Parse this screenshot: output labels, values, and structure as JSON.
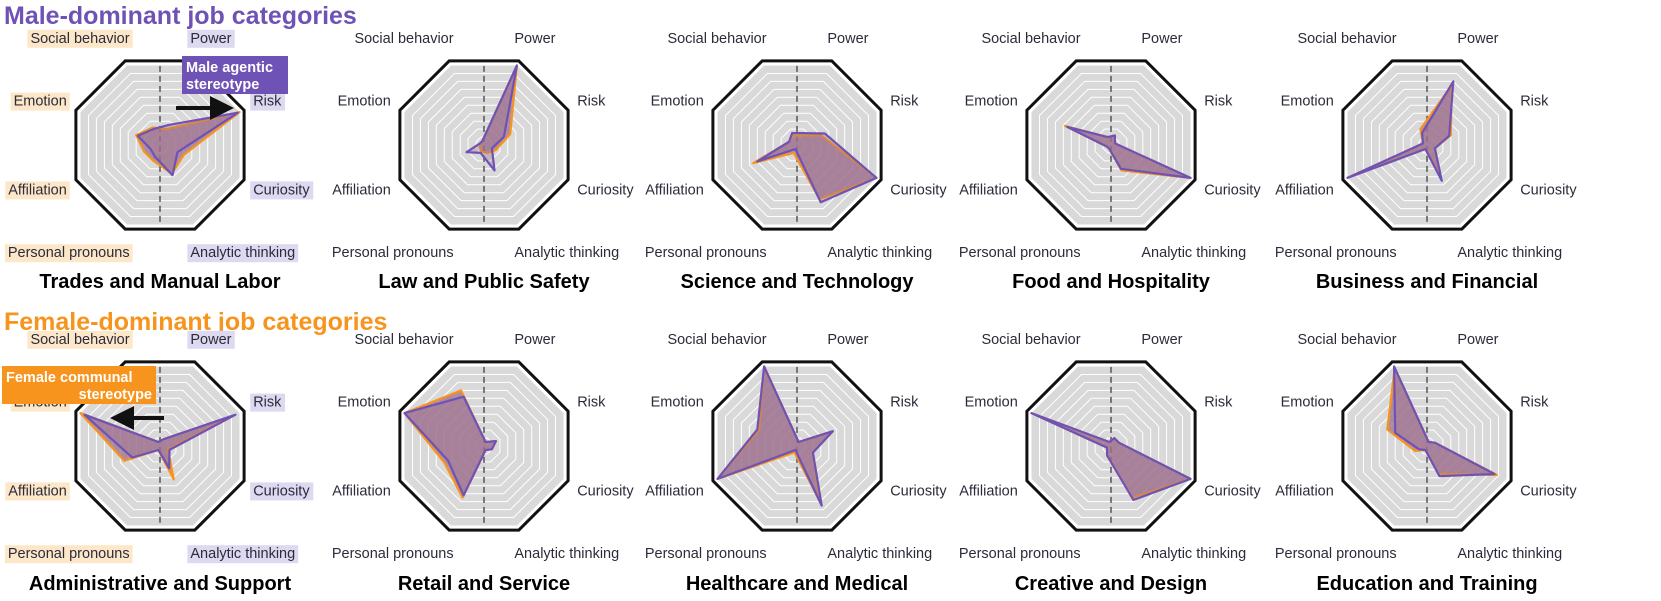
{
  "colors": {
    "male": "#6f52b5",
    "female": "#f7941d",
    "fill": "#9e6f8c",
    "grid_bg": "#d9d9d9",
    "male_label_bg": "#dcd9f0",
    "female_label_bg": "#fde7c9"
  },
  "sections": {
    "male_title": "Male-dominant job categories",
    "female_title": "Female-dominant job categories"
  },
  "annotations": {
    "male_line1": "Male agentic",
    "male_line2": "stereotype",
    "female_line1": "Female communal",
    "female_line2": "stereotype"
  },
  "chart_data": {
    "type": "radar",
    "axes": [
      "Power",
      "Risk",
      "Curiosity",
      "Analytic thinking",
      "Personal pronouns",
      "Affiliation",
      "Emotion",
      "Social behavior"
    ],
    "range": [
      0,
      1
    ],
    "legend": [
      {
        "name": "Male",
        "color": "#6f52b5"
      },
      {
        "name": "Female",
        "color": "#f7941d"
      }
    ],
    "panels": [
      {
        "title": "Trades and Manual Labor",
        "group": "male",
        "highlight": true,
        "series": [
          {
            "name": "Male",
            "values": [
              0.25,
              0.98,
              0.22,
              0.38,
              0.15,
              0.12,
              0.28,
              0.2
            ]
          },
          {
            "name": "Female",
            "values": [
              0.2,
              1.0,
              0.3,
              0.36,
              0.2,
              0.2,
              0.3,
              0.22
            ]
          }
        ]
      },
      {
        "title": "Law and Public Safety",
        "group": "male",
        "highlight": false,
        "series": [
          {
            "name": "Male",
            "values": [
              1.0,
              0.25,
              0.1,
              0.32,
              0.1,
              0.22,
              0.05,
              0.05
            ]
          },
          {
            "name": "Female",
            "values": [
              1.0,
              0.33,
              0.15,
              0.1,
              0.08,
              0.05,
              0.05,
              0.05
            ]
          }
        ]
      },
      {
        "title": "Science and Technology",
        "group": "male",
        "highlight": false,
        "series": [
          {
            "name": "Male",
            "values": [
              0.15,
              0.35,
              1.0,
              0.72,
              0.05,
              0.5,
              0.1,
              0.15
            ]
          },
          {
            "name": "Female",
            "values": [
              0.12,
              0.3,
              1.0,
              0.68,
              0.1,
              0.55,
              0.1,
              0.12
            ]
          }
        ]
      },
      {
        "title": "Food and Hospitality",
        "group": "male",
        "highlight": false,
        "series": [
          {
            "name": "Male",
            "values": [
              0.12,
              0.05,
              1.0,
              0.3,
              0.05,
              0.05,
              0.55,
              0.1
            ]
          },
          {
            "name": "Female",
            "values": [
              0.12,
              0.05,
              1.0,
              0.32,
              0.05,
              0.05,
              0.58,
              0.1
            ]
          }
        ]
      },
      {
        "title": "Business and Financial",
        "group": "male",
        "highlight": false,
        "series": [
          {
            "name": "Male",
            "values": [
              0.8,
              0.28,
              0.1,
              0.45,
              0.05,
              1.0,
              0.05,
              0.15
            ]
          },
          {
            "name": "Female",
            "values": [
              0.75,
              0.3,
              0.1,
              0.4,
              0.05,
              1.0,
              0.05,
              0.2
            ]
          }
        ]
      },
      {
        "title": "Administrative and Support",
        "group": "female",
        "highlight": true,
        "series": [
          {
            "name": "Male",
            "values": [
              0.08,
              0.95,
              0.12,
              0.28,
              0.05,
              0.35,
              0.95,
              0.05
            ]
          },
          {
            "name": "Female",
            "values": [
              0.08,
              0.92,
              0.1,
              0.42,
              0.05,
              0.45,
              1.0,
              0.05
            ]
          }
        ]
      },
      {
        "title": "Retail and Service",
        "group": "female",
        "highlight": false,
        "series": [
          {
            "name": "Male",
            "values": [
              0.05,
              0.15,
              0.1,
              0.05,
              0.62,
              0.45,
              1.0,
              0.62
            ]
          },
          {
            "name": "Female",
            "values": [
              0.05,
              0.15,
              0.1,
              0.05,
              0.65,
              0.5,
              1.0,
              0.7
            ]
          }
        ]
      },
      {
        "title": "Healthcare and Medical",
        "group": "female",
        "highlight": false,
        "series": [
          {
            "name": "Male",
            "values": [
              0.05,
              0.45,
              0.2,
              0.75,
              0.05,
              1.0,
              0.5,
              1.0
            ]
          },
          {
            "name": "Female",
            "values": [
              0.05,
              0.45,
              0.2,
              0.7,
              0.08,
              1.0,
              0.48,
              1.0
            ]
          }
        ]
      },
      {
        "title": "Creative and Design",
        "group": "female",
        "highlight": false,
        "series": [
          {
            "name": "Male",
            "values": [
              0.1,
              0.1,
              1.0,
              0.68,
              0.12,
              0.05,
              1.0,
              0.05
            ]
          },
          {
            "name": "Female",
            "values": [
              0.1,
              0.1,
              1.0,
              0.65,
              0.12,
              0.05,
              1.0,
              0.05
            ]
          }
        ]
      },
      {
        "title": "Education and Training",
        "group": "female",
        "highlight": false,
        "series": [
          {
            "name": "Male",
            "values": [
              0.05,
              0.1,
              0.85,
              0.38,
              0.05,
              0.1,
              0.4,
              1.0
            ]
          },
          {
            "name": "Female",
            "values": [
              0.05,
              0.1,
              0.88,
              0.35,
              0.05,
              0.15,
              0.5,
              0.98
            ]
          }
        ]
      }
    ]
  }
}
